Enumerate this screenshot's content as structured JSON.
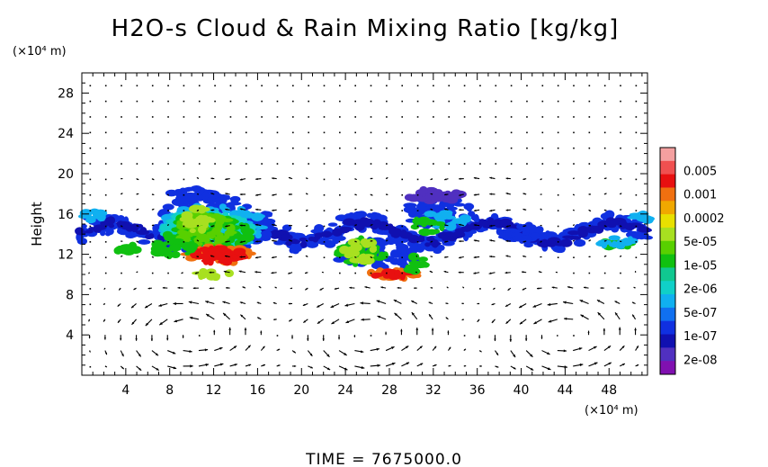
{
  "chart_data": {
    "type": "heatmap",
    "title": "H2O-s Cloud & Rain Mixing Ratio [kg/kg]",
    "ylabel": "Height",
    "y_unit_label": "(×10⁴ m)",
    "x_unit_label": "(×10⁴ m)",
    "xlim": [
      0,
      51.5
    ],
    "ylim": [
      0,
      30
    ],
    "x_ticks": [
      "4",
      "8",
      "12",
      "16",
      "20",
      "24",
      "28",
      "32",
      "36",
      "40",
      "44",
      "48"
    ],
    "y_ticks": [
      "4",
      "8",
      "12",
      "16",
      "20",
      "24",
      "28"
    ],
    "x_tick_values": [
      4,
      8,
      12,
      16,
      20,
      24,
      28,
      32,
      36,
      40,
      44,
      48
    ],
    "y_tick_values": [
      4,
      8,
      12,
      16,
      20,
      24,
      28
    ],
    "colorbar": {
      "labels": [
        "0.005",
        "0.001",
        "0.0002",
        "5e-05",
        "1e-05",
        "2e-06",
        "5e-07",
        "1e-07",
        "2e-08"
      ],
      "colors": [
        "#f4a0a0",
        "#f05050",
        "#e81010",
        "#f07010",
        "#f0a800",
        "#e8e000",
        "#a8e020",
        "#58d000",
        "#10c010",
        "#10c890",
        "#10d0c8",
        "#10b0f0",
        "#1070f0",
        "#1030e0",
        "#1010b0",
        "#5030c0",
        "#8010b0"
      ]
    },
    "cloud_regions": [
      {
        "x": [
          7,
          17
        ],
        "y": [
          10,
          18.5
        ],
        "max_level": "0.001"
      },
      {
        "x": [
          0,
          52
        ],
        "y": [
          12.5,
          16.5
        ],
        "max_level": "5e-07"
      },
      {
        "x": [
          23,
          31
        ],
        "y": [
          9.5,
          14
        ],
        "max_level": "0.001"
      },
      {
        "x": [
          29,
          35
        ],
        "y": [
          16,
          18.5
        ],
        "max_level": "1e-07"
      },
      {
        "x": [
          47.5,
          50.5
        ],
        "y": [
          12.5,
          13.5
        ],
        "max_level": "2e-06"
      }
    ],
    "wind_vectors": "overlay"
  },
  "time_label": "TIME  =  7675000.0"
}
